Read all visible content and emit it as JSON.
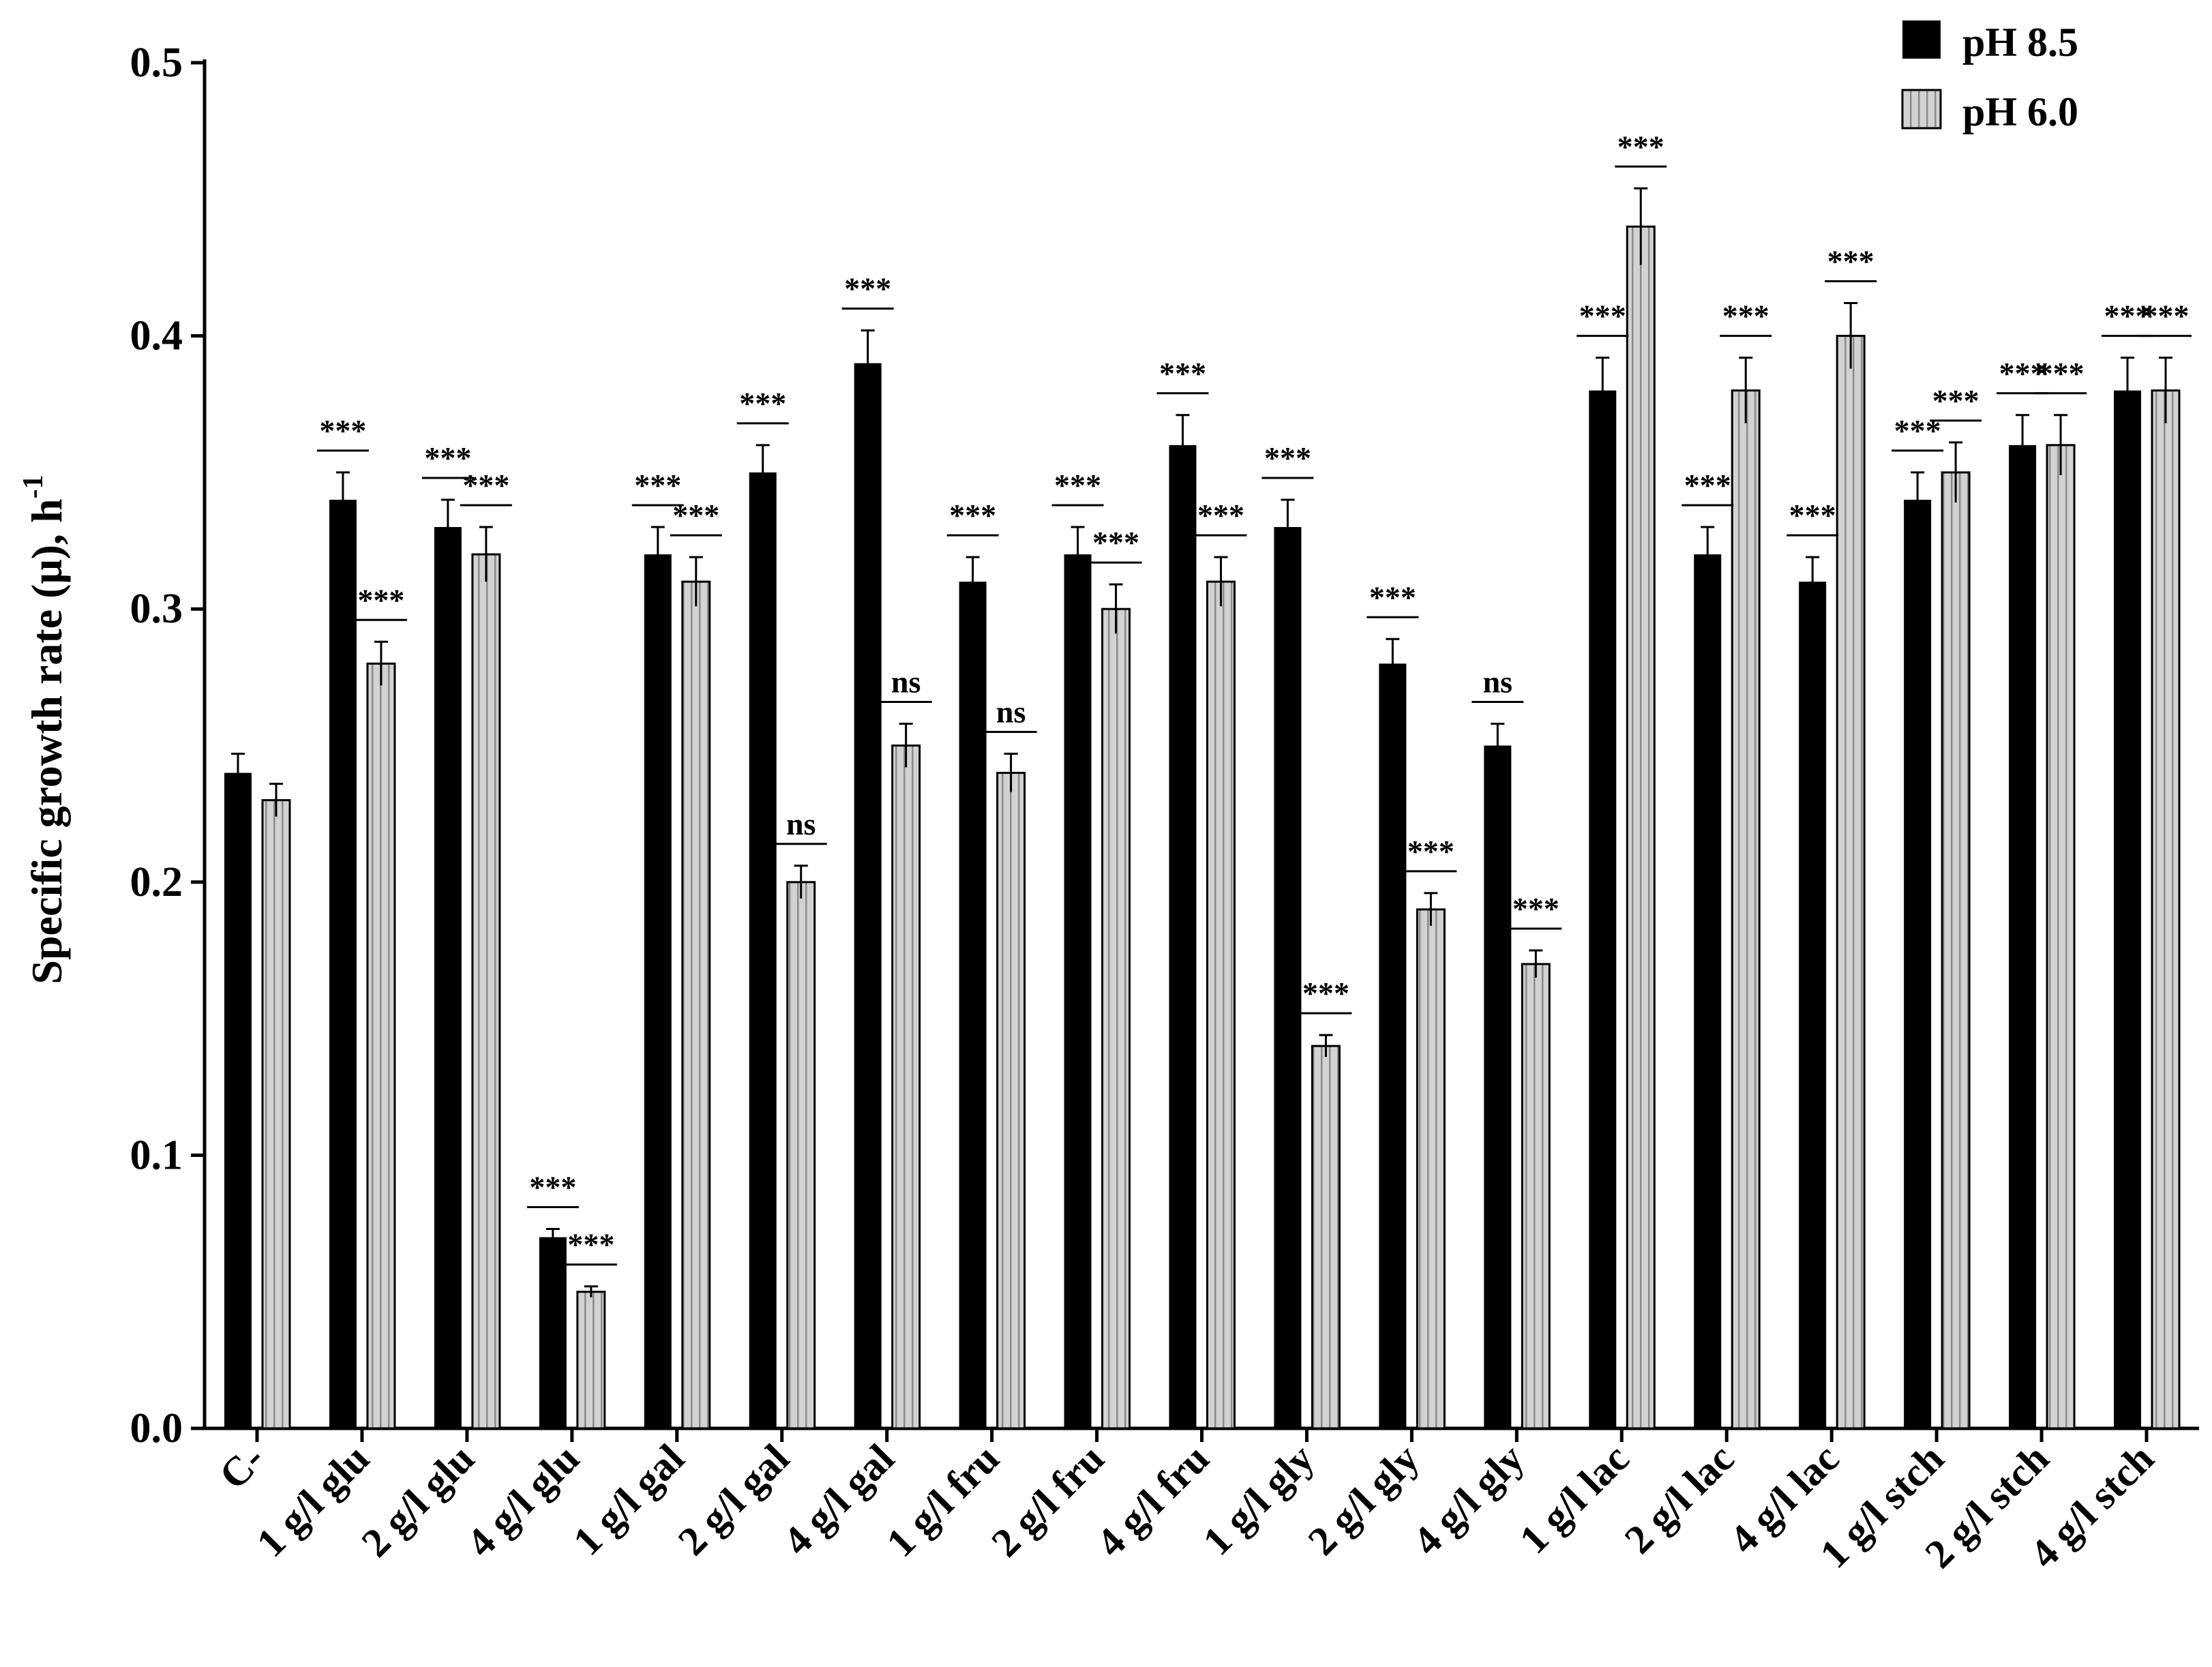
{
  "chart_data": {
    "type": "bar",
    "ylabel": "Specific growth rate (μ), h",
    "ylabel_superscript": "-1",
    "ylim": [
      0,
      0.5
    ],
    "yticks": [
      "0.0",
      "0.1",
      "0.2",
      "0.3",
      "0.4",
      "0.5"
    ],
    "legend_position": "top-right",
    "categories": [
      "C-",
      "1 g/l glu",
      "2 g/l glu",
      "4 g/l glu",
      "1 g/l gal",
      "2 g/l gal",
      "4 g/l gal",
      "1 g/l fru",
      "2 g/l fru",
      "4 g/l fru",
      "1 g/l gly",
      "2 g/l gly",
      "4 g/l gly",
      "1 g/l lac",
      "2 g/l lac",
      "4 g/l lac",
      "1 g/l stch",
      "2 g/l stch",
      "4 g/l stch"
    ],
    "series": [
      {
        "name": "pH 8.5",
        "color": "#000000",
        "pattern": "solid",
        "values": [
          0.24,
          0.34,
          0.33,
          0.07,
          0.32,
          0.35,
          0.39,
          0.31,
          0.32,
          0.36,
          0.33,
          0.28,
          0.25,
          0.38,
          0.32,
          0.31,
          0.34,
          0.36,
          0.38
        ],
        "errors": [
          0.007,
          0.01,
          0.01,
          0.003,
          0.01,
          0.01,
          0.012,
          0.009,
          0.01,
          0.011,
          0.01,
          0.009,
          0.008,
          0.012,
          0.01,
          0.009,
          0.01,
          0.011,
          0.012
        ],
        "significance": [
          "",
          "***",
          "***",
          "***",
          "***",
          "***",
          "***",
          "***",
          "***",
          "***",
          "***",
          "***",
          "ns",
          "***",
          "***",
          "***",
          "***",
          "***",
          "***"
        ]
      },
      {
        "name": "pH 6.0",
        "color": "#c8c8c8",
        "pattern": "vertical-stripes",
        "values": [
          0.23,
          0.28,
          0.32,
          0.05,
          0.31,
          0.2,
          0.25,
          0.24,
          0.3,
          0.31,
          0.14,
          0.19,
          0.17,
          0.44,
          0.38,
          0.4,
          0.35,
          0.36,
          0.38
        ],
        "errors": [
          0.006,
          0.008,
          0.01,
          0.002,
          0.009,
          0.006,
          0.008,
          0.007,
          0.009,
          0.009,
          0.004,
          0.006,
          0.005,
          0.014,
          0.012,
          0.012,
          0.011,
          0.011,
          0.012
        ],
        "significance": [
          "",
          "***",
          "***",
          "***",
          "***",
          "ns",
          "ns",
          "ns",
          "***",
          "***",
          "***",
          "***",
          "***",
          "***",
          "***",
          "***",
          "***",
          "***",
          "***"
        ]
      }
    ]
  }
}
